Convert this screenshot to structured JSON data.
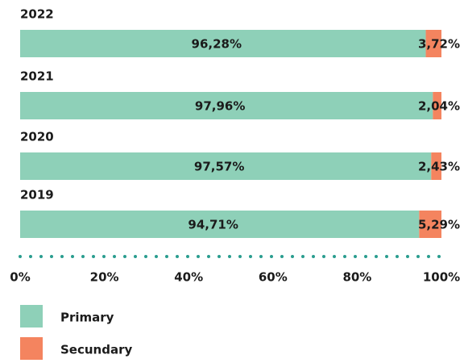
{
  "chart_data": {
    "type": "stacked-bar-horizontal",
    "categories": [
      "2022",
      "2021",
      "2020",
      "2019"
    ],
    "series": [
      {
        "name": "Primary",
        "color": "#8ed0b8",
        "values": [
          96.28,
          97.96,
          97.57,
          94.71
        ],
        "value_labels": [
          "96,28%",
          "97,96%",
          "97,57%",
          "94,71%"
        ]
      },
      {
        "name": "Secundary",
        "color": "#f4845f",
        "values": [
          3.72,
          2.04,
          2.43,
          5.29
        ],
        "value_labels": [
          "3,72%",
          "2,04%",
          "2,43%",
          "5,29%"
        ]
      }
    ],
    "xlim": [
      0,
      100
    ],
    "xticks": [
      {
        "value": 0,
        "label": "0%"
      },
      {
        "value": 20,
        "label": "20%"
      },
      {
        "value": 40,
        "label": "40%"
      },
      {
        "value": 60,
        "label": "60%"
      },
      {
        "value": 80,
        "label": "80%"
      },
      {
        "value": 100,
        "label": "100%"
      }
    ],
    "axis_color": "#2a9d8f"
  }
}
